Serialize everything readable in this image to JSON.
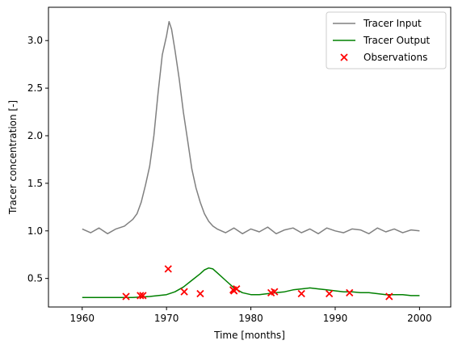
{
  "chart_data": {
    "type": "line",
    "xlabel": "Time [months]",
    "ylabel": "Tracer concentration [-]",
    "xlim": [
      1956.0,
      2003.7
    ],
    "ylim": [
      0.2,
      3.35
    ],
    "xticks": [
      1960,
      1970,
      1980,
      1990,
      2000,
      2010
    ],
    "yticks": [
      0.5,
      1.0,
      1.5,
      2.0,
      2.5,
      3.0
    ],
    "grid": false,
    "legend_position": "upper right",
    "series": [
      {
        "name": "Tracer Input",
        "kind": "line",
        "color": "#808080",
        "x": [
          1960.0,
          1961.0,
          1962.0,
          1963.0,
          1964.0,
          1965.0,
          1966.0,
          1966.5,
          1967.0,
          1967.5,
          1968.0,
          1968.5,
          1969.0,
          1969.5,
          1970.0,
          1970.3,
          1970.6,
          1971.0,
          1971.5,
          1972.0,
          1972.5,
          1973.0,
          1973.5,
          1974.0,
          1974.5,
          1975.0,
          1975.5,
          1976.0,
          1977.0,
          1978.0,
          1979.0,
          1980.0,
          1981.0,
          1982.0,
          1983.0,
          1984.0,
          1985.0,
          1986.0,
          1987.0,
          1988.0,
          1989.0,
          1990.0,
          1991.0,
          1992.0,
          1993.0,
          1994.0,
          1995.0,
          1996.0,
          1997.0,
          1998.0,
          1999.0,
          2000.0
        ],
        "y": [
          1.02,
          0.98,
          1.03,
          0.97,
          1.02,
          1.05,
          1.12,
          1.18,
          1.3,
          1.48,
          1.68,
          2.0,
          2.45,
          2.85,
          3.05,
          3.2,
          3.12,
          2.9,
          2.6,
          2.25,
          1.95,
          1.65,
          1.45,
          1.3,
          1.18,
          1.1,
          1.05,
          1.02,
          0.98,
          1.03,
          0.97,
          1.02,
          0.99,
          1.04,
          0.97,
          1.01,
          1.03,
          0.98,
          1.02,
          0.97,
          1.03,
          1.0,
          0.98,
          1.02,
          1.01,
          0.97,
          1.03,
          0.99,
          1.02,
          0.98,
          1.01,
          1.0
        ]
      },
      {
        "name": "Tracer Output",
        "kind": "line",
        "color": "#008000",
        "x": [
          1960.0,
          1965.0,
          1966.0,
          1968.0,
          1969.0,
          1970.0,
          1971.0,
          1972.0,
          1973.0,
          1974.0,
          1974.5,
          1975.0,
          1975.5,
          1976.0,
          1977.0,
          1978.0,
          1979.0,
          1980.0,
          1981.0,
          1982.0,
          1983.0,
          1984.0,
          1985.0,
          1986.0,
          1987.0,
          1988.0,
          1989.0,
          1990.0,
          1991.0,
          1992.0,
          1993.0,
          1994.0,
          1995.0,
          1996.0,
          1997.0,
          1998.0,
          1999.0,
          2000.0
        ],
        "y": [
          0.3,
          0.3,
          0.3,
          0.31,
          0.32,
          0.33,
          0.36,
          0.41,
          0.48,
          0.55,
          0.59,
          0.61,
          0.6,
          0.56,
          0.48,
          0.4,
          0.35,
          0.33,
          0.33,
          0.34,
          0.35,
          0.36,
          0.38,
          0.39,
          0.4,
          0.39,
          0.38,
          0.37,
          0.36,
          0.36,
          0.35,
          0.35,
          0.34,
          0.33,
          0.33,
          0.33,
          0.32,
          0.32
        ]
      },
      {
        "name": "Observations",
        "kind": "scatter",
        "color": "#ff0000",
        "x": [
          1965.2,
          1966.9,
          1967.2,
          1970.2,
          1972.1,
          1974.0,
          1977.9,
          1978.0,
          1978.3,
          1982.4,
          1982.8,
          1986.0,
          1989.3,
          1991.7,
          1996.4
        ],
        "y": [
          0.31,
          0.32,
          0.32,
          0.6,
          0.36,
          0.34,
          0.38,
          0.37,
          0.39,
          0.35,
          0.36,
          0.34,
          0.34,
          0.35,
          0.31
        ]
      }
    ]
  }
}
